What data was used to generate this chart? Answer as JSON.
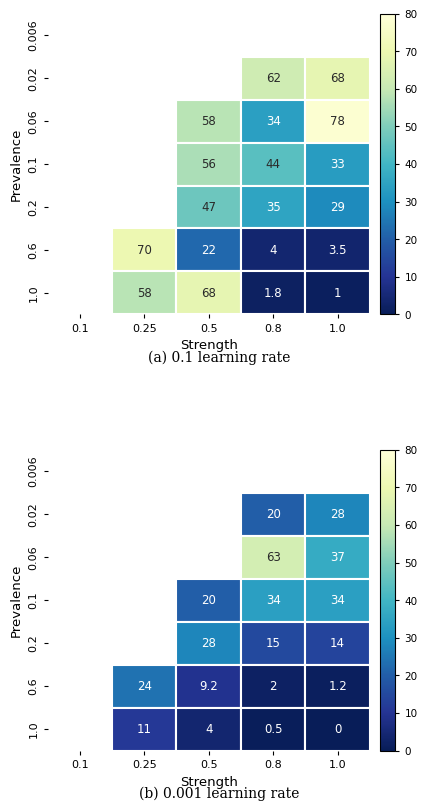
{
  "plot_a": {
    "caption": "(a) 0.1 learning rate",
    "strengths": [
      "0.1",
      "0.25",
      "0.5",
      "0.8",
      "1.0"
    ],
    "prevalences": [
      "0.006",
      "0.02",
      "0.06",
      "0.1",
      "0.2",
      "0.6",
      "1.0"
    ],
    "grid": [
      [
        null,
        null,
        null,
        null,
        null
      ],
      [
        null,
        null,
        null,
        62,
        68
      ],
      [
        null,
        null,
        58,
        34,
        78
      ],
      [
        null,
        null,
        56,
        44,
        33
      ],
      [
        null,
        null,
        47,
        35,
        29
      ],
      [
        null,
        70,
        22,
        4,
        3.5
      ],
      [
        null,
        58,
        68,
        1.8,
        1
      ]
    ]
  },
  "plot_b": {
    "caption": "(b) 0.001 learning rate",
    "strengths": [
      "0.1",
      "0.25",
      "0.5",
      "0.8",
      "1.0"
    ],
    "prevalences": [
      "0.006",
      "0.02",
      "0.06",
      "0.1",
      "0.2",
      "0.6",
      "1.0"
    ],
    "grid": [
      [
        null,
        null,
        null,
        null,
        null
      ],
      [
        null,
        null,
        null,
        20,
        28
      ],
      [
        null,
        null,
        null,
        63,
        37
      ],
      [
        null,
        null,
        20,
        34,
        34
      ],
      [
        null,
        null,
        28,
        15,
        14
      ],
      [
        null,
        24,
        9.2,
        2,
        1.2
      ],
      [
        null,
        11,
        4,
        0.5,
        0
      ]
    ]
  },
  "vmin": 0,
  "vmax": 80,
  "cmap": "YlGnBu_r",
  "xlabel": "Strength",
  "ylabel": "Prevalence",
  "colorbar_ticks": [
    0,
    10,
    20,
    30,
    40,
    50,
    60,
    70,
    80
  ]
}
